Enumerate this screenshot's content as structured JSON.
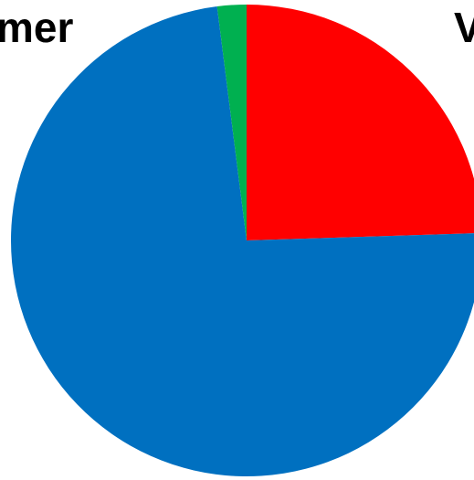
{
  "chart_data": {
    "type": "pie",
    "title": "mer",
    "annotations": [
      "V"
    ],
    "values": [
      24.5,
      73.5,
      2
    ],
    "colors": [
      "#ff0000",
      "#0070c0",
      "#00b050"
    ],
    "start_angle": 0,
    "direction": "clockwise"
  }
}
